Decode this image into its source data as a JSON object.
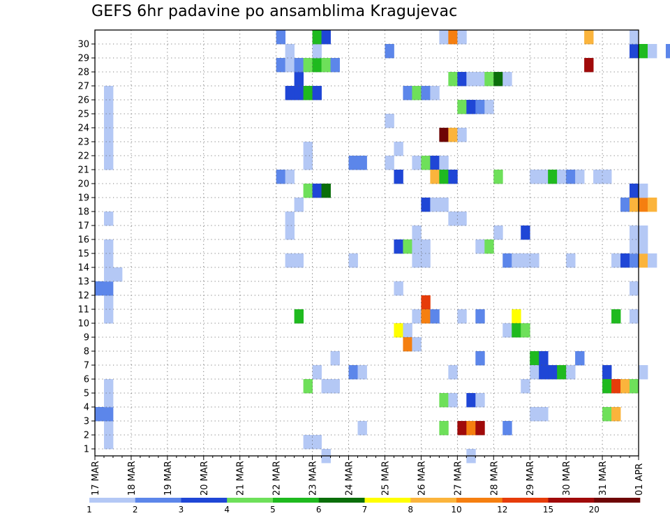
{
  "chart_data": {
    "type": "heatmap",
    "title": "GEFS 6hr padavine po ansamblima Kragujevac",
    "x_ticks": [
      "17 MAR",
      "18 MAR",
      "19 MAR",
      "20 MAR",
      "21 MAR",
      "22 MAR",
      "23 MAR",
      "24 MAR",
      "25 MAR",
      "26 MAR",
      "27 MAR",
      "28 MAR",
      "29 MAR",
      "30 MAR",
      "31 MAR",
      "01 APR"
    ],
    "y_ticks": [
      "1",
      "2",
      "3",
      "4",
      "5",
      "6",
      "7",
      "8",
      "9",
      "10",
      "11",
      "12",
      "13",
      "14",
      "15",
      "16",
      "17",
      "18",
      "19",
      "20",
      "21",
      "22",
      "23",
      "24",
      "25",
      "26",
      "27",
      "28",
      "29",
      "30"
    ],
    "x_unit": "6-hour step from 17 MAR 00Z",
    "y_unit": "ensemble member",
    "ylim": [
      0.5,
      30.5
    ],
    "grid": true,
    "colorbar": {
      "labels": [
        "1",
        "2",
        "3",
        "4",
        "5",
        "6",
        "7",
        "8",
        "10",
        "12",
        "15",
        "20"
      ],
      "colors": [
        "#b4c8f5",
        "#5c86ea",
        "#1f46d6",
        "#6ee05a",
        "#1fba1f",
        "#0a6e0a",
        "#ffff00",
        "#fbb43c",
        "#f57f10",
        "#e63c0a",
        "#a00a0a",
        "#6e0505"
      ]
    },
    "cells": [
      [
        1,
        1,
        "#b4c8f5"
      ],
      [
        1,
        2,
        "#b4c8f5"
      ],
      [
        1,
        3,
        "#5c86ea"
      ],
      [
        1,
        4,
        "#b4c8f5"
      ],
      [
        1,
        5,
        "#b4c8f5"
      ],
      [
        1,
        10,
        "#b4c8f5"
      ],
      [
        1,
        11,
        "#b4c8f5"
      ],
      [
        1,
        12,
        "#5c86ea"
      ],
      [
        1,
        13,
        "#b4c8f5"
      ],
      [
        1,
        14,
        "#b4c8f5"
      ],
      [
        1,
        15,
        "#b4c8f5"
      ],
      [
        1,
        17,
        "#b4c8f5"
      ],
      [
        1,
        21,
        "#b4c8f5"
      ],
      [
        1,
        22,
        "#b4c8f5"
      ],
      [
        1,
        23,
        "#b4c8f5"
      ],
      [
        1,
        24,
        "#b4c8f5"
      ],
      [
        1,
        25,
        "#b4c8f5"
      ],
      [
        1,
        26,
        "#b4c8f5"
      ],
      [
        0,
        3,
        "#5c86ea"
      ],
      [
        0,
        12,
        "#5c86ea"
      ],
      [
        2,
        13,
        "#b4c8f5"
      ],
      [
        23,
        1,
        "#b4c8f5"
      ],
      [
        24,
        1,
        "#b4c8f5"
      ],
      [
        25,
        0,
        "#b4c8f5"
      ],
      [
        26,
        5,
        "#b4c8f5"
      ],
      [
        25,
        5,
        "#b4c8f5"
      ],
      [
        24,
        6,
        "#b4c8f5"
      ],
      [
        29,
        2,
        "#b4c8f5"
      ],
      [
        28,
        6,
        "#5c86ea"
      ],
      [
        29,
        6,
        "#b4c8f5"
      ],
      [
        26,
        7,
        "#b4c8f5"
      ],
      [
        23,
        5,
        "#6ee05a"
      ],
      [
        22,
        10,
        "#1fba1f"
      ],
      [
        21,
        14,
        "#b4c8f5"
      ],
      [
        22,
        14,
        "#b4c8f5"
      ],
      [
        21,
        16,
        "#b4c8f5"
      ],
      [
        21,
        17,
        "#b4c8f5"
      ],
      [
        22,
        18,
        "#b4c8f5"
      ],
      [
        23,
        19,
        "#6ee05a"
      ],
      [
        24,
        19,
        "#1f46d6"
      ],
      [
        25,
        19,
        "#0a6e0a"
      ],
      [
        20,
        20,
        "#5c86ea"
      ],
      [
        21,
        20,
        "#b4c8f5"
      ],
      [
        23,
        21,
        "#b4c8f5"
      ],
      [
        23,
        22,
        "#b4c8f5"
      ],
      [
        28,
        21,
        "#5c86ea"
      ],
      [
        29,
        21,
        "#5c86ea"
      ],
      [
        28,
        14,
        "#b4c8f5"
      ],
      [
        21,
        26,
        "#1f46d6"
      ],
      [
        22,
        26,
        "#1f46d6"
      ],
      [
        23,
        26,
        "#1fba1f"
      ],
      [
        24,
        26,
        "#1f46d6"
      ],
      [
        22,
        27,
        "#1f46d6"
      ],
      [
        20,
        28,
        "#5c86ea"
      ],
      [
        21,
        28,
        "#b4c8f5"
      ],
      [
        22,
        28,
        "#5c86ea"
      ],
      [
        23,
        28,
        "#6ee05a"
      ],
      [
        24,
        28,
        "#1fba1f"
      ],
      [
        25,
        28,
        "#6ee05a"
      ],
      [
        26,
        28,
        "#5c86ea"
      ],
      [
        21,
        29,
        "#b4c8f5"
      ],
      [
        24,
        29,
        "#b4c8f5"
      ],
      [
        20,
        30,
        "#5c86ea"
      ],
      [
        24,
        30,
        "#1fba1f"
      ],
      [
        25,
        30,
        "#1f46d6"
      ],
      [
        32,
        29,
        "#5c86ea"
      ],
      [
        33,
        22,
        "#b4c8f5"
      ],
      [
        32,
        21,
        "#b4c8f5"
      ],
      [
        32,
        24,
        "#b4c8f5"
      ],
      [
        34,
        26,
        "#5c86ea"
      ],
      [
        35,
        26,
        "#6ee05a"
      ],
      [
        36,
        26,
        "#5c86ea"
      ],
      [
        37,
        26,
        "#b4c8f5"
      ],
      [
        33,
        20,
        "#1f46d6"
      ],
      [
        35,
        21,
        "#b4c8f5"
      ],
      [
        36,
        21,
        "#6ee05a"
      ],
      [
        37,
        21,
        "#1f46d6"
      ],
      [
        38,
        21,
        "#b4c8f5"
      ],
      [
        37,
        20,
        "#fbb43c"
      ],
      [
        38,
        20,
        "#1fba1f"
      ],
      [
        39,
        20,
        "#1f46d6"
      ],
      [
        36,
        18,
        "#1f46d6"
      ],
      [
        37,
        18,
        "#b4c8f5"
      ],
      [
        38,
        18,
        "#b4c8f5"
      ],
      [
        39,
        17,
        "#b4c8f5"
      ],
      [
        40,
        17,
        "#b4c8f5"
      ],
      [
        33,
        15,
        "#1f46d6"
      ],
      [
        34,
        15,
        "#6ee05a"
      ],
      [
        35,
        15,
        "#b4c8f5"
      ],
      [
        36,
        15,
        "#b4c8f5"
      ],
      [
        35,
        16,
        "#b4c8f5"
      ],
      [
        35,
        14,
        "#b4c8f5"
      ],
      [
        36,
        14,
        "#b4c8f5"
      ],
      [
        36,
        11,
        "#e63c0a"
      ],
      [
        35,
        10,
        "#b4c8f5"
      ],
      [
        36,
        10,
        "#f57f10"
      ],
      [
        37,
        10,
        "#5c86ea"
      ],
      [
        33,
        9,
        "#ffff00"
      ],
      [
        34,
        9,
        "#b4c8f5"
      ],
      [
        34,
        8,
        "#f57f10"
      ],
      [
        35,
        8,
        "#b4c8f5"
      ],
      [
        33,
        12,
        "#b4c8f5"
      ],
      [
        38,
        23,
        "#6e0505"
      ],
      [
        39,
        23,
        "#fbb43c"
      ],
      [
        40,
        23,
        "#b4c8f5"
      ],
      [
        38,
        30,
        "#b4c8f5"
      ],
      [
        39,
        30,
        "#f57f10"
      ],
      [
        40,
        30,
        "#b4c8f5"
      ],
      [
        39,
        27,
        "#6ee05a"
      ],
      [
        40,
        27,
        "#1f46d6"
      ],
      [
        41,
        27,
        "#b4c8f5"
      ],
      [
        42,
        27,
        "#b4c8f5"
      ],
      [
        43,
        27,
        "#6ee05a"
      ],
      [
        44,
        27,
        "#0a6e0a"
      ],
      [
        45,
        27,
        "#b4c8f5"
      ],
      [
        40,
        25,
        "#6ee05a"
      ],
      [
        41,
        25,
        "#1f46d6"
      ],
      [
        42,
        25,
        "#5c86ea"
      ],
      [
        43,
        25,
        "#b4c8f5"
      ],
      [
        39,
        6,
        "#b4c8f5"
      ],
      [
        38,
        4,
        "#6ee05a"
      ],
      [
        39,
        4,
        "#b4c8f5"
      ],
      [
        41,
        4,
        "#1f46d6"
      ],
      [
        42,
        4,
        "#b4c8f5"
      ],
      [
        38,
        2,
        "#6ee05a"
      ],
      [
        40,
        2,
        "#a00a0a"
      ],
      [
        41,
        2,
        "#f57f10"
      ],
      [
        42,
        2,
        "#a00a0a"
      ],
      [
        45,
        2,
        "#5c86ea"
      ],
      [
        40,
        10,
        "#b4c8f5"
      ],
      [
        42,
        10,
        "#5c86ea"
      ],
      [
        46,
        10,
        "#ffff00"
      ],
      [
        45,
        9,
        "#b4c8f5"
      ],
      [
        46,
        9,
        "#1fba1f"
      ],
      [
        47,
        9,
        "#6ee05a"
      ],
      [
        42,
        7,
        "#5c86ea"
      ],
      [
        41,
        0,
        "#b4c8f5"
      ],
      [
        44,
        20,
        "#6ee05a"
      ],
      [
        44,
        16,
        "#b4c8f5"
      ],
      [
        42,
        15,
        "#b4c8f5"
      ],
      [
        43,
        15,
        "#6ee05a"
      ],
      [
        47,
        16,
        "#1f46d6"
      ],
      [
        45,
        14,
        "#5c86ea"
      ],
      [
        46,
        14,
        "#b4c8f5"
      ],
      [
        47,
        14,
        "#b4c8f5"
      ],
      [
        48,
        14,
        "#b4c8f5"
      ],
      [
        47,
        5,
        "#b4c8f5"
      ],
      [
        48,
        7,
        "#1fba1f"
      ],
      [
        49,
        7,
        "#1f46d6"
      ],
      [
        48,
        6,
        "#b4c8f5"
      ],
      [
        49,
        6,
        "#1f46d6"
      ],
      [
        50,
        6,
        "#1f46d6"
      ],
      [
        51,
        6,
        "#1fba1f"
      ],
      [
        52,
        6,
        "#b4c8f5"
      ],
      [
        48,
        3,
        "#b4c8f5"
      ],
      [
        49,
        3,
        "#b4c8f5"
      ],
      [
        48,
        20,
        "#b4c8f5"
      ],
      [
        49,
        20,
        "#b4c8f5"
      ],
      [
        50,
        20,
        "#1fba1f"
      ],
      [
        51,
        20,
        "#b4c8f5"
      ],
      [
        52,
        20,
        "#5c86ea"
      ],
      [
        53,
        20,
        "#b4c8f5"
      ],
      [
        52,
        14,
        "#b4c8f5"
      ],
      [
        53,
        7,
        "#5c86ea"
      ],
      [
        55,
        20,
        "#b4c8f5"
      ],
      [
        56,
        20,
        "#b4c8f5"
      ],
      [
        54,
        28,
        "#a00a0a"
      ],
      [
        54,
        30,
        "#fbb43c"
      ],
      [
        56,
        6,
        "#1f46d6"
      ],
      [
        56,
        5,
        "#1fba1f"
      ],
      [
        57,
        5,
        "#e63c0a"
      ],
      [
        58,
        5,
        "#fbb43c"
      ],
      [
        59,
        5,
        "#6ee05a"
      ],
      [
        56,
        3,
        "#6ee05a"
      ],
      [
        57,
        3,
        "#fbb43c"
      ],
      [
        57,
        10,
        "#1fba1f"
      ],
      [
        59,
        10,
        "#b4c8f5"
      ],
      [
        59,
        12,
        "#b4c8f5"
      ],
      [
        57,
        14,
        "#b4c8f5"
      ],
      [
        58,
        14,
        "#1f46d6"
      ],
      [
        59,
        14,
        "#5c86ea"
      ],
      [
        60,
        14,
        "#fbb43c"
      ],
      [
        61,
        14,
        "#b4c8f5"
      ],
      [
        59,
        15,
        "#b4c8f5"
      ],
      [
        60,
        15,
        "#b4c8f5"
      ],
      [
        59,
        16,
        "#b4c8f5"
      ],
      [
        60,
        16,
        "#b4c8f5"
      ],
      [
        58,
        18,
        "#5c86ea"
      ],
      [
        59,
        18,
        "#fbb43c"
      ],
      [
        60,
        18,
        "#f57f10"
      ],
      [
        61,
        18,
        "#fbb43c"
      ],
      [
        59,
        19,
        "#1f46d6"
      ],
      [
        60,
        19,
        "#b4c8f5"
      ],
      [
        59,
        29,
        "#1f46d6"
      ],
      [
        60,
        29,
        "#1fba1f"
      ],
      [
        61,
        29,
        "#b4c8f5"
      ],
      [
        63,
        29,
        "#5c86ea"
      ],
      [
        59,
        30,
        "#b4c8f5"
      ],
      [
        60,
        6,
        "#b4c8f5"
      ]
    ]
  }
}
